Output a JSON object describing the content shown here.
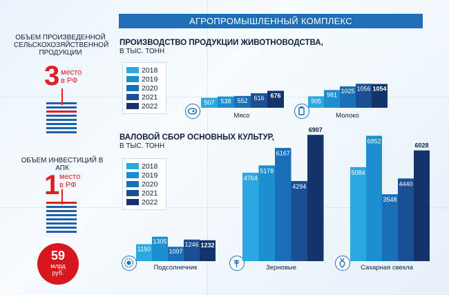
{
  "header": {
    "title": "АГРОПРОМЫШЛЕННЫЙ КОМПЛЕКС"
  },
  "left": {
    "production": {
      "label_line1": "ОБЪЕМ ПРОИЗВЕДЕННОЙ",
      "label_line2": "СЕЛЬСКОХОЗЯЙСТВЕННОЙ",
      "label_line3": "ПРОДУКЦИИ",
      "rank": "3",
      "rank_word": "место",
      "rank_region": "в РФ"
    },
    "investment": {
      "label": "ОБЪЕМ ИНВЕСТИЦИЙ В АПК",
      "rank": "1",
      "rank_word": "место",
      "rank_region": "в РФ",
      "amount": "59",
      "unit_line1": "млрд",
      "unit_line2": "руб."
    }
  },
  "sections": {
    "livestock": {
      "title": "ПРОИЗВОДСТВО ПРОДУКЦИИ ЖИВОТНОВОДСТВА,",
      "subtitle": "В ТЫС. ТОНН"
    },
    "crops": {
      "title": "ВАЛОВОЙ СБОР ОСНОВНЫХ КУЛЬТУР,",
      "subtitle": "В ТЫС. ТОНН"
    }
  },
  "colors": {
    "years": [
      "#29a9e0",
      "#1d8fd1",
      "#1a6fb9",
      "#1a4f95",
      "#13336a"
    ],
    "accent": "#e01c24",
    "title_bar": "#1e6fb8"
  },
  "chart_data": [
    {
      "type": "bar",
      "series_names": [
        "2018",
        "2019",
        "2020",
        "2021",
        "2022"
      ],
      "categories": [
        "Мясо",
        "Молоко"
      ],
      "values": {
        "Мясо": [
          507,
          538,
          552,
          616,
          676
        ],
        "Молоко": [
          905,
          981,
          1025,
          1056,
          1054
        ]
      },
      "title": "ПРОИЗВОДСТВО ПРОДУКЦИИ ЖИВОТНОВОДСТВА,",
      "subtitle": "В ТЫС. ТОНН"
    },
    {
      "type": "bar",
      "series_names": [
        "2018",
        "2019",
        "2020",
        "2021",
        "2022"
      ],
      "categories": [
        "Подсолнечник",
        "Зерновые",
        "Сахарная свекла"
      ],
      "values": {
        "Подсолнечник": [
          1150,
          1305,
          1097,
          1246,
          1232
        ],
        "Зерновые": [
          4764,
          5178,
          6167,
          4294,
          6907
        ],
        "Сахарная свекла": [
          5084,
          6852,
          3548,
          4440,
          6028
        ]
      },
      "title": "ВАЛОВОЙ СБОР ОСНОВНЫХ КУЛЬТУР,",
      "subtitle": "В ТЫС. ТОНН"
    }
  ]
}
